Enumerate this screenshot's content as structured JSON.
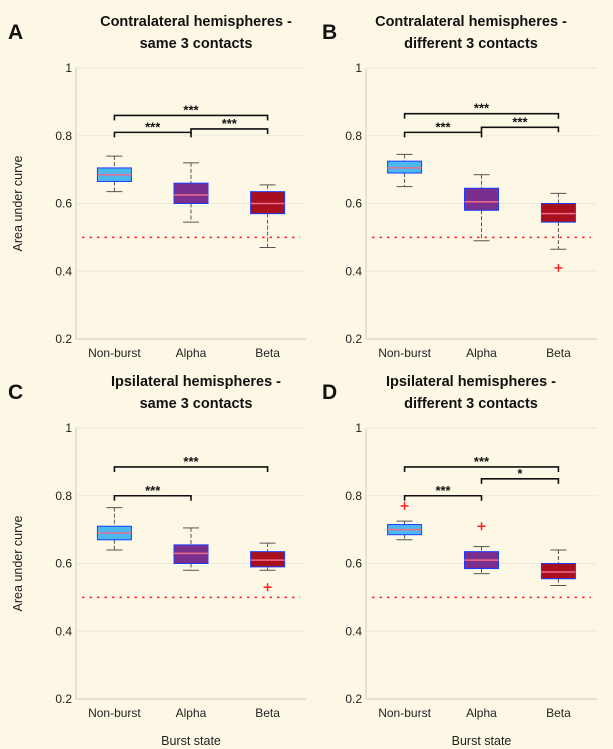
{
  "figure": {
    "x_axis_label": "Burst state",
    "y_axis_label": "Area under curve"
  },
  "colors": {
    "non_burst": "#4db8f0",
    "alpha": "#7a2f8f",
    "beta": "#a8101e",
    "box_edge": "#1a3cff",
    "median": "#f06a8a",
    "chance_line": "#ff2020",
    "outlier": "#ff2020",
    "whisker": "#555555",
    "sig_bar": "#111111"
  },
  "chart_data": [
    {
      "type": "box",
      "letter": "A",
      "title": [
        "Contralateral hemispheres -",
        "same 3 contacts"
      ],
      "categories": [
        "Non-burst",
        "Alpha",
        "Beta"
      ],
      "yticks": [
        "0.2",
        "0.4",
        "0.6",
        "0.8",
        "1"
      ],
      "ylim": [
        0.2,
        1.0
      ],
      "chance_level": 0.5,
      "show_xlabel": false,
      "show_ylabel": true,
      "boxes": [
        {
          "category": "Non-burst",
          "min": 0.635,
          "q1": 0.665,
          "median": 0.685,
          "q3": 0.705,
          "max": 0.74,
          "outliers": []
        },
        {
          "category": "Alpha",
          "min": 0.545,
          "q1": 0.6,
          "median": 0.625,
          "q3": 0.66,
          "max": 0.72,
          "outliers": []
        },
        {
          "category": "Beta",
          "min": 0.47,
          "q1": 0.57,
          "median": 0.6,
          "q3": 0.635,
          "max": 0.655,
          "outliers": []
        }
      ],
      "significance": [
        {
          "from": 0,
          "to": 1,
          "y": 0.81,
          "label": "***"
        },
        {
          "from": 1,
          "to": 2,
          "y": 0.82,
          "label": "***"
        },
        {
          "from": 0,
          "to": 2,
          "y": 0.86,
          "label": "***"
        }
      ]
    },
    {
      "type": "box",
      "letter": "B",
      "title": [
        "Contralateral hemispheres -",
        "different 3 contacts"
      ],
      "categories": [
        "Non-burst",
        "Alpha",
        "Beta"
      ],
      "yticks": [
        "0.2",
        "0.4",
        "0.6",
        "0.8",
        "1"
      ],
      "ylim": [
        0.2,
        1.0
      ],
      "chance_level": 0.5,
      "show_xlabel": false,
      "show_ylabel": false,
      "boxes": [
        {
          "category": "Non-burst",
          "min": 0.65,
          "q1": 0.69,
          "median": 0.705,
          "q3": 0.725,
          "max": 0.745,
          "outliers": []
        },
        {
          "category": "Alpha",
          "min": 0.49,
          "q1": 0.58,
          "median": 0.605,
          "q3": 0.645,
          "max": 0.685,
          "outliers": []
        },
        {
          "category": "Beta",
          "min": 0.465,
          "q1": 0.545,
          "median": 0.57,
          "q3": 0.6,
          "max": 0.63,
          "outliers": [
            0.41
          ]
        }
      ],
      "significance": [
        {
          "from": 0,
          "to": 1,
          "y": 0.81,
          "label": "***"
        },
        {
          "from": 1,
          "to": 2,
          "y": 0.825,
          "label": "***"
        },
        {
          "from": 0,
          "to": 2,
          "y": 0.865,
          "label": "***"
        }
      ]
    },
    {
      "type": "box",
      "letter": "C",
      "title": [
        "Ipsilateral hemispheres -",
        "same 3 contacts"
      ],
      "categories": [
        "Non-burst",
        "Alpha",
        "Beta"
      ],
      "yticks": [
        "0.2",
        "0.4",
        "0.6",
        "0.8",
        "1"
      ],
      "ylim": [
        0.2,
        1.0
      ],
      "chance_level": 0.5,
      "show_xlabel": true,
      "show_ylabel": true,
      "boxes": [
        {
          "category": "Non-burst",
          "min": 0.64,
          "q1": 0.67,
          "median": 0.69,
          "q3": 0.71,
          "max": 0.765,
          "outliers": []
        },
        {
          "category": "Alpha",
          "min": 0.58,
          "q1": 0.6,
          "median": 0.63,
          "q3": 0.655,
          "max": 0.705,
          "outliers": []
        },
        {
          "category": "Beta",
          "min": 0.58,
          "q1": 0.59,
          "median": 0.61,
          "q3": 0.635,
          "max": 0.66,
          "outliers": [
            0.53
          ]
        }
      ],
      "significance": [
        {
          "from": 0,
          "to": 1,
          "y": 0.8,
          "label": "***"
        },
        {
          "from": 0,
          "to": 2,
          "y": 0.885,
          "label": "***"
        }
      ]
    },
    {
      "type": "box",
      "letter": "D",
      "title": [
        "Ipsilateral hemispheres -",
        "different 3 contacts"
      ],
      "categories": [
        "Non-burst",
        "Alpha",
        "Beta"
      ],
      "yticks": [
        "0.2",
        "0.4",
        "0.6",
        "0.8",
        "1"
      ],
      "ylim": [
        0.2,
        1.0
      ],
      "chance_level": 0.5,
      "show_xlabel": true,
      "show_ylabel": false,
      "boxes": [
        {
          "category": "Non-burst",
          "min": 0.67,
          "q1": 0.685,
          "median": 0.7,
          "q3": 0.715,
          "max": 0.725,
          "outliers": [
            0.77
          ]
        },
        {
          "category": "Alpha",
          "min": 0.57,
          "q1": 0.585,
          "median": 0.61,
          "q3": 0.635,
          "max": 0.65,
          "outliers": [
            0.71
          ]
        },
        {
          "category": "Beta",
          "min": 0.535,
          "q1": 0.555,
          "median": 0.575,
          "q3": 0.6,
          "max": 0.64,
          "outliers": []
        }
      ],
      "significance": [
        {
          "from": 0,
          "to": 1,
          "y": 0.8,
          "label": "***"
        },
        {
          "from": 1,
          "to": 2,
          "y": 0.85,
          "label": "*"
        },
        {
          "from": 0,
          "to": 2,
          "y": 0.885,
          "label": "***"
        }
      ]
    }
  ]
}
